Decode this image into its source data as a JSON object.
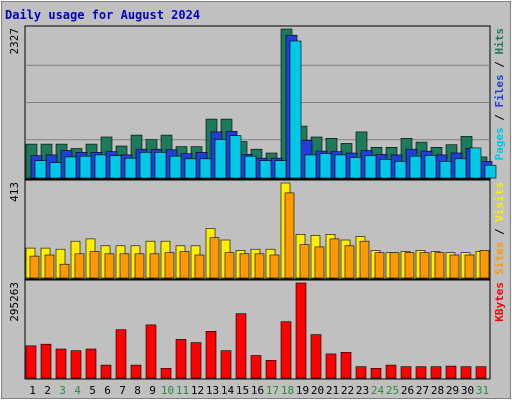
{
  "chart_data": {
    "type": "bar",
    "title": "Daily usage for August 2024",
    "categories": [
      "1",
      "2",
      "3",
      "4",
      "5",
      "6",
      "7",
      "8",
      "9",
      "10",
      "11",
      "12",
      "13",
      "14",
      "15",
      "16",
      "17",
      "18",
      "19",
      "20",
      "21",
      "22",
      "23",
      "24",
      "25",
      "26",
      "27",
      "28",
      "29",
      "30",
      "31"
    ],
    "weekend_days": [
      "3",
      "4",
      "10",
      "11",
      "17",
      "18",
      "24",
      "25",
      "31"
    ],
    "panels": [
      {
        "id": "hits",
        "max_label": "2327",
        "ymax": 2327,
        "right_labels": [
          {
            "text": "Pages",
            "color": "#00c8e6"
          },
          {
            "text": " / ",
            "color": "#000000"
          },
          {
            "text": "Files",
            "color": "#1f3fd6"
          },
          {
            "text": " / ",
            "color": "#000000"
          },
          {
            "text": "Hits",
            "color": "#1d7a5a"
          }
        ],
        "series": [
          {
            "name": "Hits",
            "color": "#1d7a5a",
            "values": [
              530,
              530,
              530,
              460,
              530,
              640,
              500,
              670,
              600,
              670,
              490,
              490,
              920,
              920,
              570,
              450,
              390,
              2327,
              810,
              640,
              620,
              540,
              720,
              480,
              480,
              620,
              560,
              480,
              520,
              650,
              330
            ]
          },
          {
            "name": "Files",
            "color": "#1f3fd6",
            "values": [
              350,
              360,
              430,
              400,
              400,
              410,
              360,
              450,
              450,
              440,
              380,
              400,
              720,
              730,
              370,
              310,
              310,
              2230,
              590,
              420,
              410,
              390,
              430,
              370,
              360,
              450,
              420,
              360,
              390,
              460,
              260
            ]
          },
          {
            "name": "Pages",
            "color": "#00c8e6",
            "values": [
              270,
              240,
              330,
              340,
              360,
              350,
              310,
              400,
              400,
              340,
              300,
              300,
              600,
              660,
              340,
              270,
              270,
              2140,
              360,
              380,
              360,
              320,
              350,
              290,
              260,
              340,
              350,
              260,
              300,
              470,
              200
            ]
          }
        ]
      },
      {
        "id": "visits",
        "max_label": "413",
        "ymax": 413,
        "right_labels": [
          {
            "text": "Sites",
            "color": "#ff9900"
          },
          {
            "text": " / ",
            "color": "#000000"
          },
          {
            "text": "Visits",
            "color": "#ffee00"
          }
        ],
        "series": [
          {
            "name": "Visits",
            "color": "#ffee00",
            "values": [
              130,
              130,
              125,
              160,
              170,
              140,
              140,
              140,
              160,
              160,
              140,
              140,
              215,
              165,
              120,
              125,
              125,
              413,
              190,
              185,
              190,
              165,
              180,
              120,
              110,
              115,
              120,
              115,
              110,
              110,
              115
            ]
          },
          {
            "name": "Sites",
            "color": "#ff9900",
            "values": [
              95,
              100,
              60,
              105,
              115,
              105,
              105,
              105,
              105,
              110,
              115,
              100,
              175,
              110,
              105,
              105,
              100,
              370,
              145,
              135,
              170,
              140,
              160,
              110,
              110,
              110,
              110,
              110,
              100,
              100,
              120
            ]
          }
        ]
      },
      {
        "id": "kbytes",
        "max_label": "295263",
        "ymax": 295263,
        "right_labels": [
          {
            "text": "KBytes",
            "color": "#ff0000"
          }
        ],
        "series": [
          {
            "name": "KBytes",
            "color": "#ff0000",
            "values": [
              100000,
              105000,
              90000,
              85000,
              90000,
              40000,
              150000,
              40000,
              165000,
              30000,
              120000,
              110000,
              145000,
              85000,
              200000,
              70000,
              55000,
              175000,
              295263,
              135000,
              75000,
              80000,
              35000,
              30000,
              40000,
              35000,
              35000,
              35000,
              37000,
              35000,
              35000
            ]
          }
        ]
      }
    ]
  }
}
